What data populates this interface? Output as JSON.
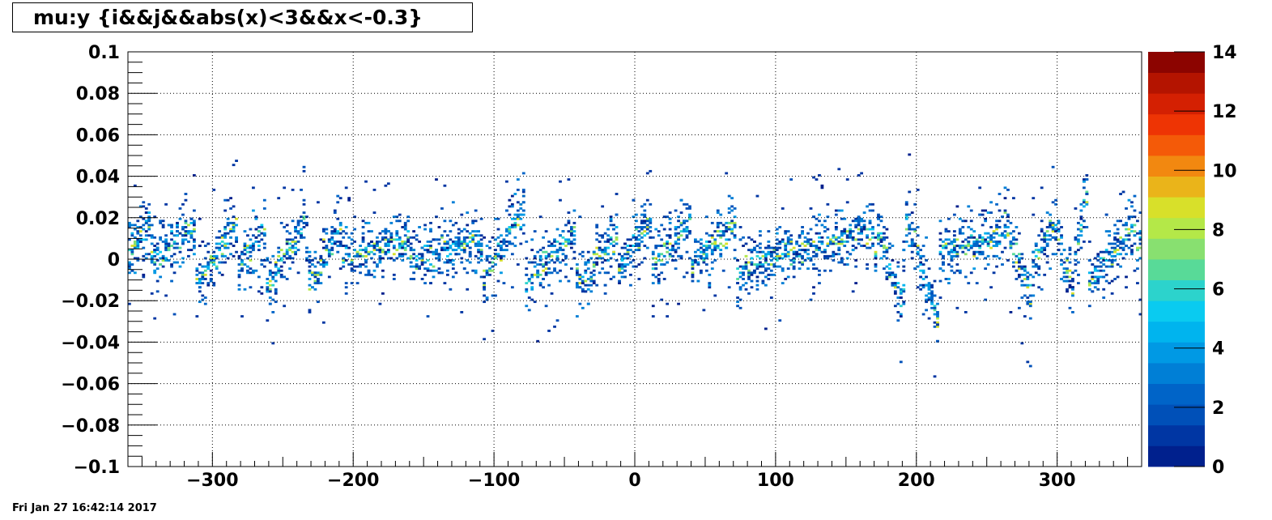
{
  "chart_data": {
    "type": "heatmap",
    "title": "mu:y {i&&j&&abs(x)<3&&x<-0.3}",
    "xlabel": "",
    "ylabel": "",
    "xlim": [
      -360,
      360
    ],
    "ylim": [
      -0.1,
      0.1
    ],
    "x_ticks": [
      "−300",
      "−200",
      "−100",
      "0",
      "100",
      "200",
      "300"
    ],
    "x_tick_values": [
      -300,
      -200,
      -100,
      0,
      100,
      200,
      300
    ],
    "y_ticks": [
      "0.1",
      "0.08",
      "0.06",
      "0.04",
      "0.02",
      "0",
      "−0.02",
      "−0.04",
      "−0.06",
      "−0.08",
      "−0.1"
    ],
    "y_tick_values": [
      0.1,
      0.08,
      0.06,
      0.04,
      0.02,
      0,
      -0.02,
      -0.04,
      -0.06,
      -0.08,
      -0.1
    ],
    "z_range": [
      0,
      14
    ],
    "z_ticks": [
      "14",
      "12",
      "10",
      "8",
      "6",
      "4",
      "2",
      "0"
    ],
    "z_tick_values": [
      14,
      12,
      10,
      8,
      6,
      4,
      2,
      0
    ],
    "grid": true,
    "colormap": "jet",
    "palette": [
      "#00208d",
      "#0036a3",
      "#0050b8",
      "#0064c8",
      "#007fd6",
      "#0099e4",
      "#00b4ee",
      "#0acbf0",
      "#2cd3cc",
      "#58da98",
      "#88e070",
      "#b4e848",
      "#d8e02a",
      "#eab41a",
      "#f28810",
      "#f45a08",
      "#ee3404",
      "#d42002",
      "#b41400",
      "#8c0400"
    ],
    "ridges": [
      {
        "x": [
          -360,
          -345
        ],
        "y": [
          0.003,
          0.018
        ]
      },
      {
        "x": [
          -348,
          -312
        ],
        "y": [
          -0.004,
          0.016
        ]
      },
      {
        "x": [
          -312,
          -282
        ],
        "y": [
          -0.012,
          0.018
        ]
      },
      {
        "x": [
          -290,
          -262
        ],
        "y": [
          -0.012,
          0.016
        ]
      },
      {
        "x": [
          -262,
          -235
        ],
        "y": [
          -0.012,
          0.016
        ]
      },
      {
        "x": [
          -232,
          -208
        ],
        "y": [
          -0.012,
          0.016
        ]
      },
      {
        "x": [
          -210,
          -160
        ],
        "y": [
          0.0,
          0.01
        ]
      },
      {
        "x": [
          -160,
          -110
        ],
        "y": [
          0.0,
          0.01
        ]
      },
      {
        "x": [
          -108,
          -78
        ],
        "y": [
          -0.01,
          0.028
        ]
      },
      {
        "x": [
          -78,
          -42
        ],
        "y": [
          -0.012,
          0.012
        ]
      },
      {
        "x": [
          -44,
          -12
        ],
        "y": [
          -0.014,
          0.012
        ]
      },
      {
        "x": [
          -16,
          12
        ],
        "y": [
          -0.01,
          0.02
        ]
      },
      {
        "x": [
          12,
          40
        ],
        "y": [
          -0.004,
          0.02
        ]
      },
      {
        "x": [
          40,
          72
        ],
        "y": [
          -0.002,
          0.018
        ]
      },
      {
        "x": [
          72,
          170
        ],
        "y": [
          -0.004,
          0.014
        ]
      },
      {
        "x": [
          172,
          190
        ],
        "y": [
          0.016,
          -0.022
        ]
      },
      {
        "x": [
          190,
          194
        ],
        "y": [
          -0.02,
          0.034
        ]
      },
      {
        "x": [
          194,
          215
        ],
        "y": [
          0.018,
          -0.028
        ]
      },
      {
        "x": [
          215,
          262
        ],
        "y": [
          0.004,
          0.012
        ]
      },
      {
        "x": [
          262,
          282
        ],
        "y": [
          0.018,
          -0.02
        ]
      },
      {
        "x": [
          282,
          300
        ],
        "y": [
          -0.004,
          0.018
        ]
      },
      {
        "x": [
          300,
          312
        ],
        "y": [
          0.016,
          -0.02
        ]
      },
      {
        "x": [
          312,
          322
        ],
        "y": [
          -0.002,
          0.038
        ]
      },
      {
        "x": [
          322,
          355
        ],
        "y": [
          -0.012,
          0.016
        ]
      },
      {
        "x": [
          355,
          360
        ],
        "y": [
          -0.004,
          0.01
        ]
      }
    ]
  },
  "footer": {
    "timestamp": "Fri Jan 27 16:42:14 2017"
  }
}
